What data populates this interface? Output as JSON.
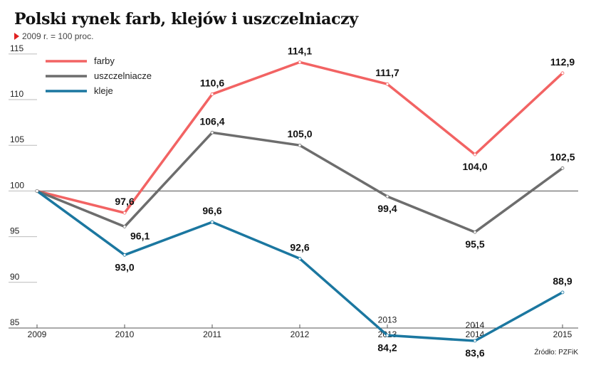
{
  "header": {
    "title": "Polski rynek farb, klejów i uszczelniaczy",
    "subtitle": "2009 r. = 100 proc."
  },
  "source": "Źródło: PZFiK",
  "chart_data": {
    "type": "line",
    "title": "Polski rynek farb, klejów i uszczelniaczy",
    "subtitle": "2009 r. = 100 proc.",
    "xlabel": "",
    "ylabel": "",
    "x": [
      "2009",
      "2010",
      "2011",
      "2012",
      "2013",
      "2014",
      "2015"
    ],
    "ylim": [
      85,
      116
    ],
    "yticks": [
      85,
      90,
      95,
      100,
      105,
      110,
      115
    ],
    "baseline": 100,
    "grid": false,
    "legend_position": "top-left",
    "series": [
      {
        "name": "farby",
        "color": "#f26363",
        "values": [
          100,
          97.6,
          110.6,
          114.1,
          111.7,
          104.0,
          112.9
        ],
        "labels": [
          "",
          "97,6",
          "110,6",
          "114,1",
          "111,7",
          "104,0",
          "112,9"
        ],
        "label_pos": [
          "",
          "above",
          "above",
          "above",
          "above",
          "below",
          "above"
        ]
      },
      {
        "name": "uszczelniacze",
        "color": "#6d6d6d",
        "values": [
          100,
          96.1,
          106.4,
          105.0,
          99.4,
          95.5,
          102.5
        ],
        "labels": [
          "",
          "96,1",
          "106,4",
          "105,0",
          "99,4",
          "95,5",
          "102,5"
        ],
        "label_pos": [
          "",
          "right",
          "above",
          "above",
          "below",
          "below",
          "above"
        ]
      },
      {
        "name": "kleje",
        "color": "#1b77a0",
        "values": [
          100,
          93.0,
          96.6,
          92.6,
          84.2,
          83.6,
          88.9
        ],
        "labels": [
          "",
          "93,0",
          "96,6",
          "92,6",
          "84,2",
          "83,6",
          "88,9"
        ],
        "label_pos": [
          "",
          "below",
          "above",
          "above",
          "below",
          "below",
          "above"
        ]
      }
    ]
  }
}
